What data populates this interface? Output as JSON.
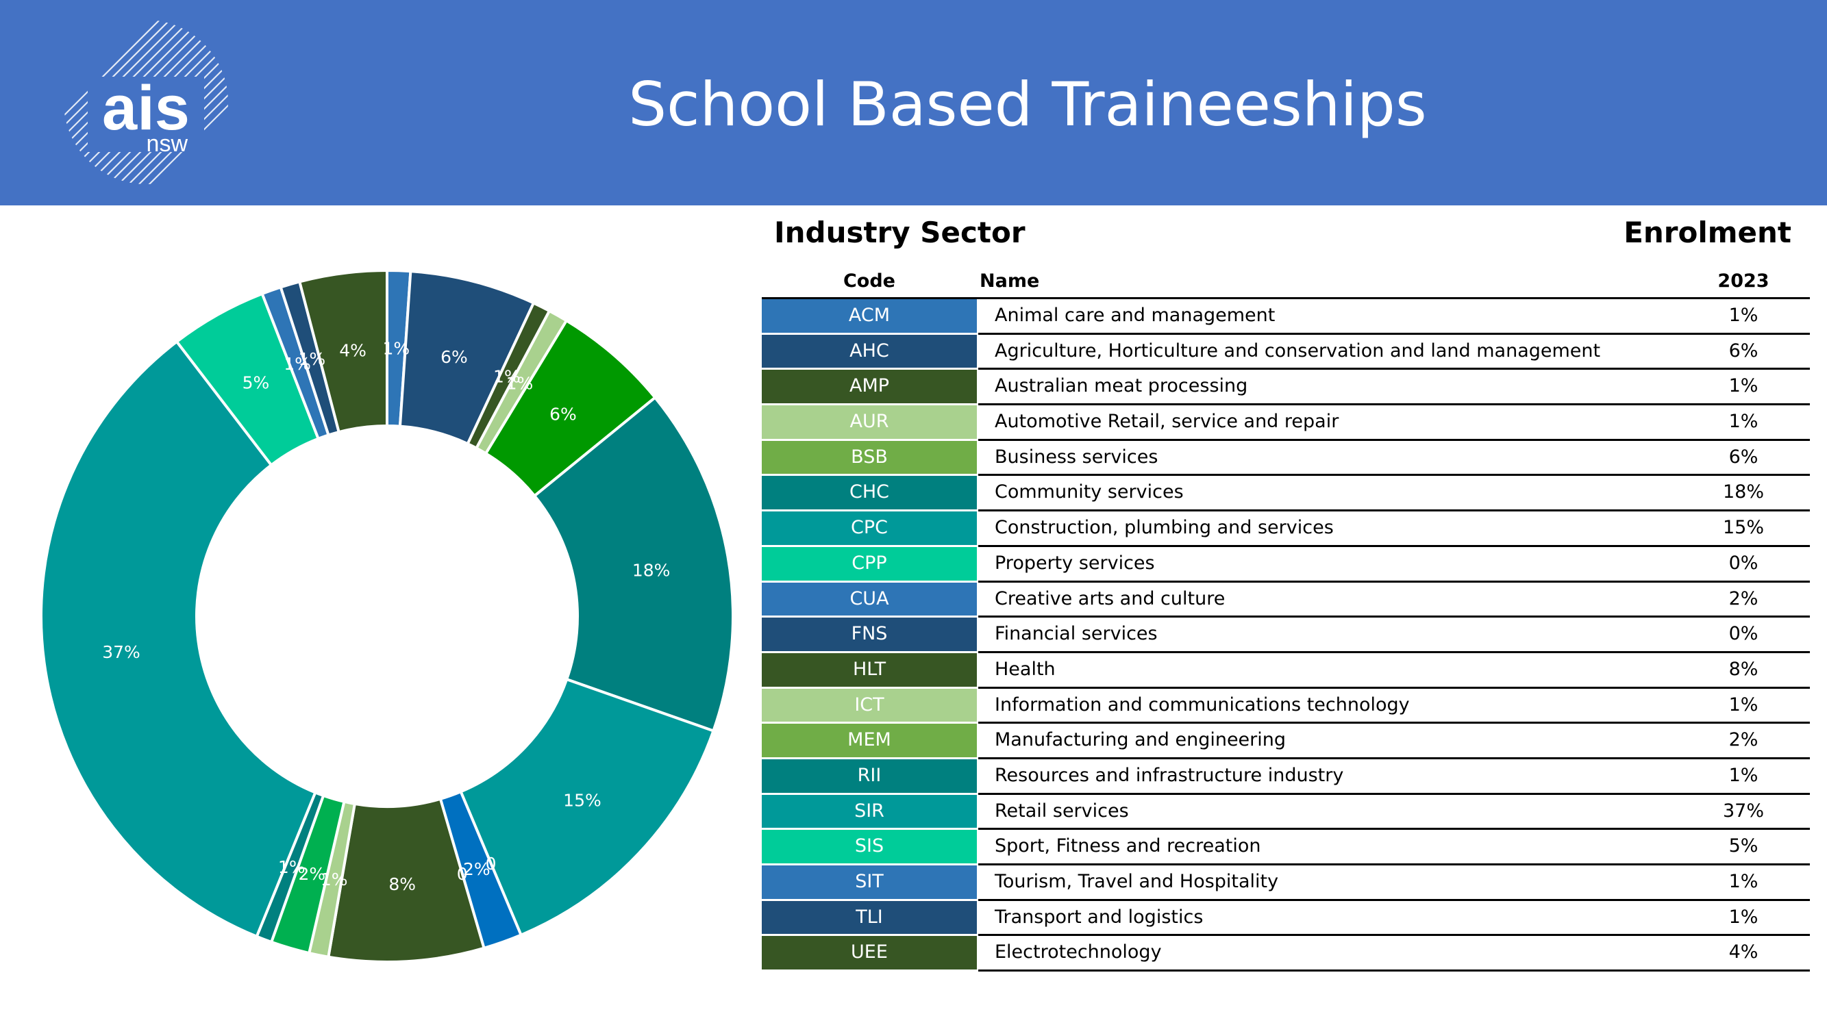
{
  "header": {
    "title": "School Based Traineeships",
    "logo_text": "ais",
    "logo_subtext": "nsw",
    "background_color": "#4472C4"
  },
  "table": {
    "section_left": "Industry Sector",
    "section_right": "Enrolment",
    "col_code": "Code",
    "col_name": "Name",
    "col_year": "2023",
    "rows": [
      {
        "code": "ACM",
        "name": "Animal care and management",
        "value": "1%",
        "color": "#2E75B6"
      },
      {
        "code": "AHC",
        "name": "Agriculture, Horticulture and conservation and land management",
        "value": "6%",
        "color": "#1F4E79"
      },
      {
        "code": "AMP",
        "name": "Australian meat processing",
        "value": "1%",
        "color": "#375623"
      },
      {
        "code": "AUR",
        "name": "Automotive Retail, service and repair",
        "value": "1%",
        "color": "#A9D18E"
      },
      {
        "code": "BSB",
        "name": "Business services",
        "value": "6%",
        "color": "#70AD47"
      },
      {
        "code": "CHC",
        "name": "Community services",
        "value": "18%",
        "color": "#00807F"
      },
      {
        "code": "CPC",
        "name": "Construction, plumbing and services",
        "value": "15%",
        "color": "#009999"
      },
      {
        "code": "CPP",
        "name": "Property services",
        "value": "0%",
        "color": "#00CC99"
      },
      {
        "code": "CUA",
        "name": "Creative arts and culture",
        "value": "2%",
        "color": "#2E75B6"
      },
      {
        "code": "FNS",
        "name": "Financial services",
        "value": "0%",
        "color": "#1F4E79"
      },
      {
        "code": "HLT",
        "name": "Health",
        "value": "8%",
        "color": "#375623"
      },
      {
        "code": "ICT",
        "name": "Information and communications technology",
        "value": "1%",
        "color": "#A9D18E"
      },
      {
        "code": "MEM",
        "name": "Manufacturing and engineering",
        "value": "2%",
        "color": "#70AD47"
      },
      {
        "code": "RII",
        "name": "Resources and infrastructure industry",
        "value": "1%",
        "color": "#00807F"
      },
      {
        "code": "SIR",
        "name": "Retail services",
        "value": "37%",
        "color": "#009999"
      },
      {
        "code": "SIS",
        "name": "Sport, Fitness and recreation",
        "value": "5%",
        "color": "#00CC99"
      },
      {
        "code": "SIT",
        "name": "Tourism, Travel and Hospitality",
        "value": "1%",
        "color": "#2E75B6"
      },
      {
        "code": "TLI",
        "name": "Transport and logistics",
        "value": "1%",
        "color": "#1F4E79"
      },
      {
        "code": "UEE",
        "name": "Electrotechnology",
        "value": "4%",
        "color": "#375623"
      }
    ]
  },
  "chart_data": {
    "type": "pie",
    "donut": true,
    "title": "",
    "start": "top",
    "direction": "clockwise",
    "slices": [
      {
        "value": 1.2,
        "label": "1%",
        "color": "#2E75B6"
      },
      {
        "value": 6.5,
        "label": "6%",
        "color": "#1F4E79"
      },
      {
        "value": 0.9,
        "label": "1%",
        "color": "#375623"
      },
      {
        "value": 1.0,
        "label": "1%",
        "color": "#A9D18E"
      },
      {
        "value": 6.0,
        "label": "6%",
        "color": "#009900"
      },
      {
        "value": 18.0,
        "label": "18%",
        "color": "#00807F"
      },
      {
        "value": 14.7,
        "label": "15%",
        "color": "#009999"
      },
      {
        "value": 0.0,
        "label": "0",
        "color": "#00CC99"
      },
      {
        "value": 2.0,
        "label": "2%",
        "color": "#0070C0"
      },
      {
        "value": 0.0,
        "label": "0",
        "color": "#1F4E79"
      },
      {
        "value": 8.0,
        "label": "8%",
        "color": "#375623"
      },
      {
        "value": 1.0,
        "label": "1%",
        "color": "#A9D18E"
      },
      {
        "value": 2.0,
        "label": "2%",
        "color": "#00B050"
      },
      {
        "value": 0.8,
        "label": "1%",
        "color": "#00807F"
      },
      {
        "value": 37.0,
        "label": "37%",
        "color": "#009999"
      },
      {
        "value": 5.0,
        "label": "5%",
        "color": "#00CC99"
      },
      {
        "value": 1.0,
        "label": "1%",
        "color": "#2E75B6"
      },
      {
        "value": 1.0,
        "label": "1%",
        "color": "#1F4E79"
      },
      {
        "value": 4.5,
        "label": "4%",
        "color": "#375623"
      }
    ]
  }
}
